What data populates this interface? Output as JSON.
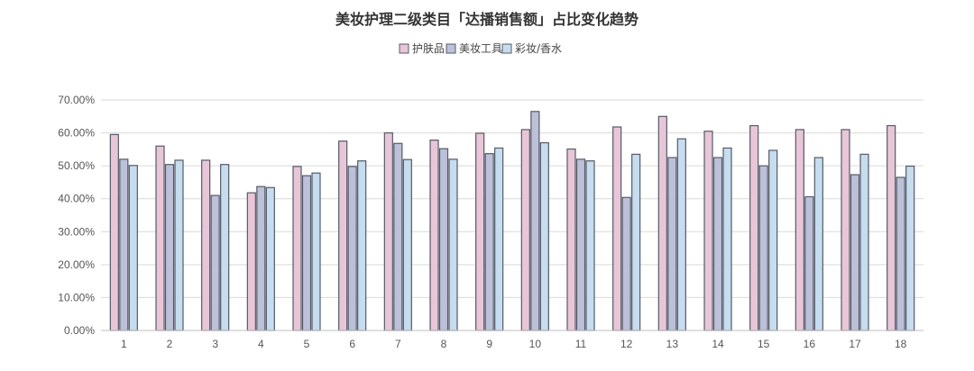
{
  "chart_data": {
    "type": "bar",
    "title": "美妆护理二级类目「达播销售额」占比变化趋势",
    "categories": [
      "1",
      "2",
      "3",
      "4",
      "5",
      "6",
      "7",
      "8",
      "9",
      "10",
      "11",
      "12",
      "13",
      "14",
      "15",
      "16",
      "17",
      "18"
    ],
    "series": [
      {
        "name": "护肤品",
        "color": "#e8c6d8",
        "values": [
          59.5,
          56.0,
          51.7,
          41.8,
          49.8,
          57.5,
          60.0,
          57.8,
          59.9,
          61.0,
          55.1,
          61.8,
          65.0,
          60.5,
          62.2,
          61.0,
          61.0,
          62.2
        ]
      },
      {
        "name": "美妆工具",
        "color": "#bcc0d9",
        "values": [
          52.0,
          50.4,
          41.0,
          43.7,
          47.0,
          49.8,
          56.8,
          55.2,
          53.7,
          66.5,
          52.0,
          40.4,
          52.5,
          52.5,
          50.0,
          40.6,
          47.3,
          46.5
        ]
      },
      {
        "name": "彩妆/香水",
        "color": "#c6dcef",
        "values": [
          50.1,
          51.7,
          50.4,
          43.4,
          47.8,
          51.5,
          51.9,
          52.0,
          55.4,
          57.0,
          51.5,
          53.5,
          58.2,
          55.4,
          54.7,
          52.5,
          53.5,
          49.9
        ]
      }
    ],
    "y_ticks": [
      "0.00%",
      "10.00%",
      "20.00%",
      "30.00%",
      "40.00%",
      "50.00%",
      "60.00%",
      "70.00%"
    ],
    "ylim": [
      0,
      70
    ],
    "legend_position": "top-center",
    "grid": true
  }
}
